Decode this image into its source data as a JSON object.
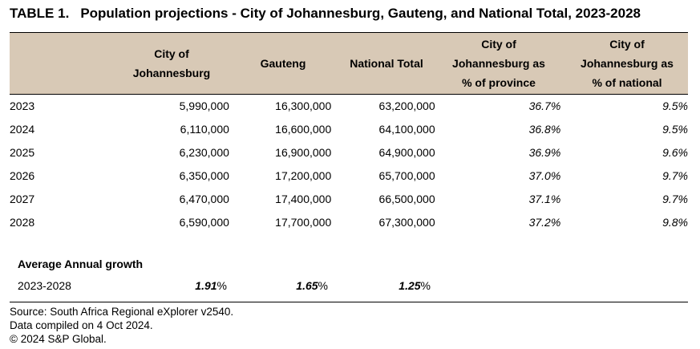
{
  "title": {
    "number": "TABLE 1.",
    "text": "Population projections - City of Johannesburg, Gauteng, and National Total, 2023-2028"
  },
  "headers": {
    "col1": [
      "City of",
      "Johannesburg"
    ],
    "col2": "Gauteng",
    "col3": "National Total",
    "col4": [
      "City of",
      "Johannesburg as",
      "% of province"
    ],
    "col5": [
      "City of",
      "Johannesburg as",
      "% of national"
    ]
  },
  "rows": [
    {
      "year": "2023",
      "joburg": "5,990,000",
      "gauteng": "16,300,000",
      "national": "63,200,000",
      "pct_province": "36.7%",
      "pct_national": "9.5%"
    },
    {
      "year": "2024",
      "joburg": "6,110,000",
      "gauteng": "16,600,000",
      "national": "64,100,000",
      "pct_province": "36.8%",
      "pct_national": "9.5%"
    },
    {
      "year": "2025",
      "joburg": "6,230,000",
      "gauteng": "16,900,000",
      "national": "64,900,000",
      "pct_province": "36.9%",
      "pct_national": "9.6%"
    },
    {
      "year": "2026",
      "joburg": "6,350,000",
      "gauteng": "17,200,000",
      "national": "65,700,000",
      "pct_province": "37.0%",
      "pct_national": "9.7%"
    },
    {
      "year": "2027",
      "joburg": "6,470,000",
      "gauteng": "17,400,000",
      "national": "66,500,000",
      "pct_province": "37.1%",
      "pct_national": "9.7%"
    },
    {
      "year": "2028",
      "joburg": "6,590,000",
      "gauteng": "17,700,000",
      "national": "67,300,000",
      "pct_province": "37.2%",
      "pct_national": "9.8%"
    }
  ],
  "average": {
    "label": "Average Annual growth",
    "period": "2023-2028",
    "joburg_value": "1.91",
    "gauteng_value": "1.65",
    "national_value": "1.25",
    "unit": "%"
  },
  "footer": {
    "source": "Source: South Africa Regional eXplorer v2540.",
    "compiled": "Data compiled on 4 Oct 2024.",
    "copyright": "© 2024 S&P Global."
  },
  "colors": {
    "header_background": "#d8c9b6"
  }
}
